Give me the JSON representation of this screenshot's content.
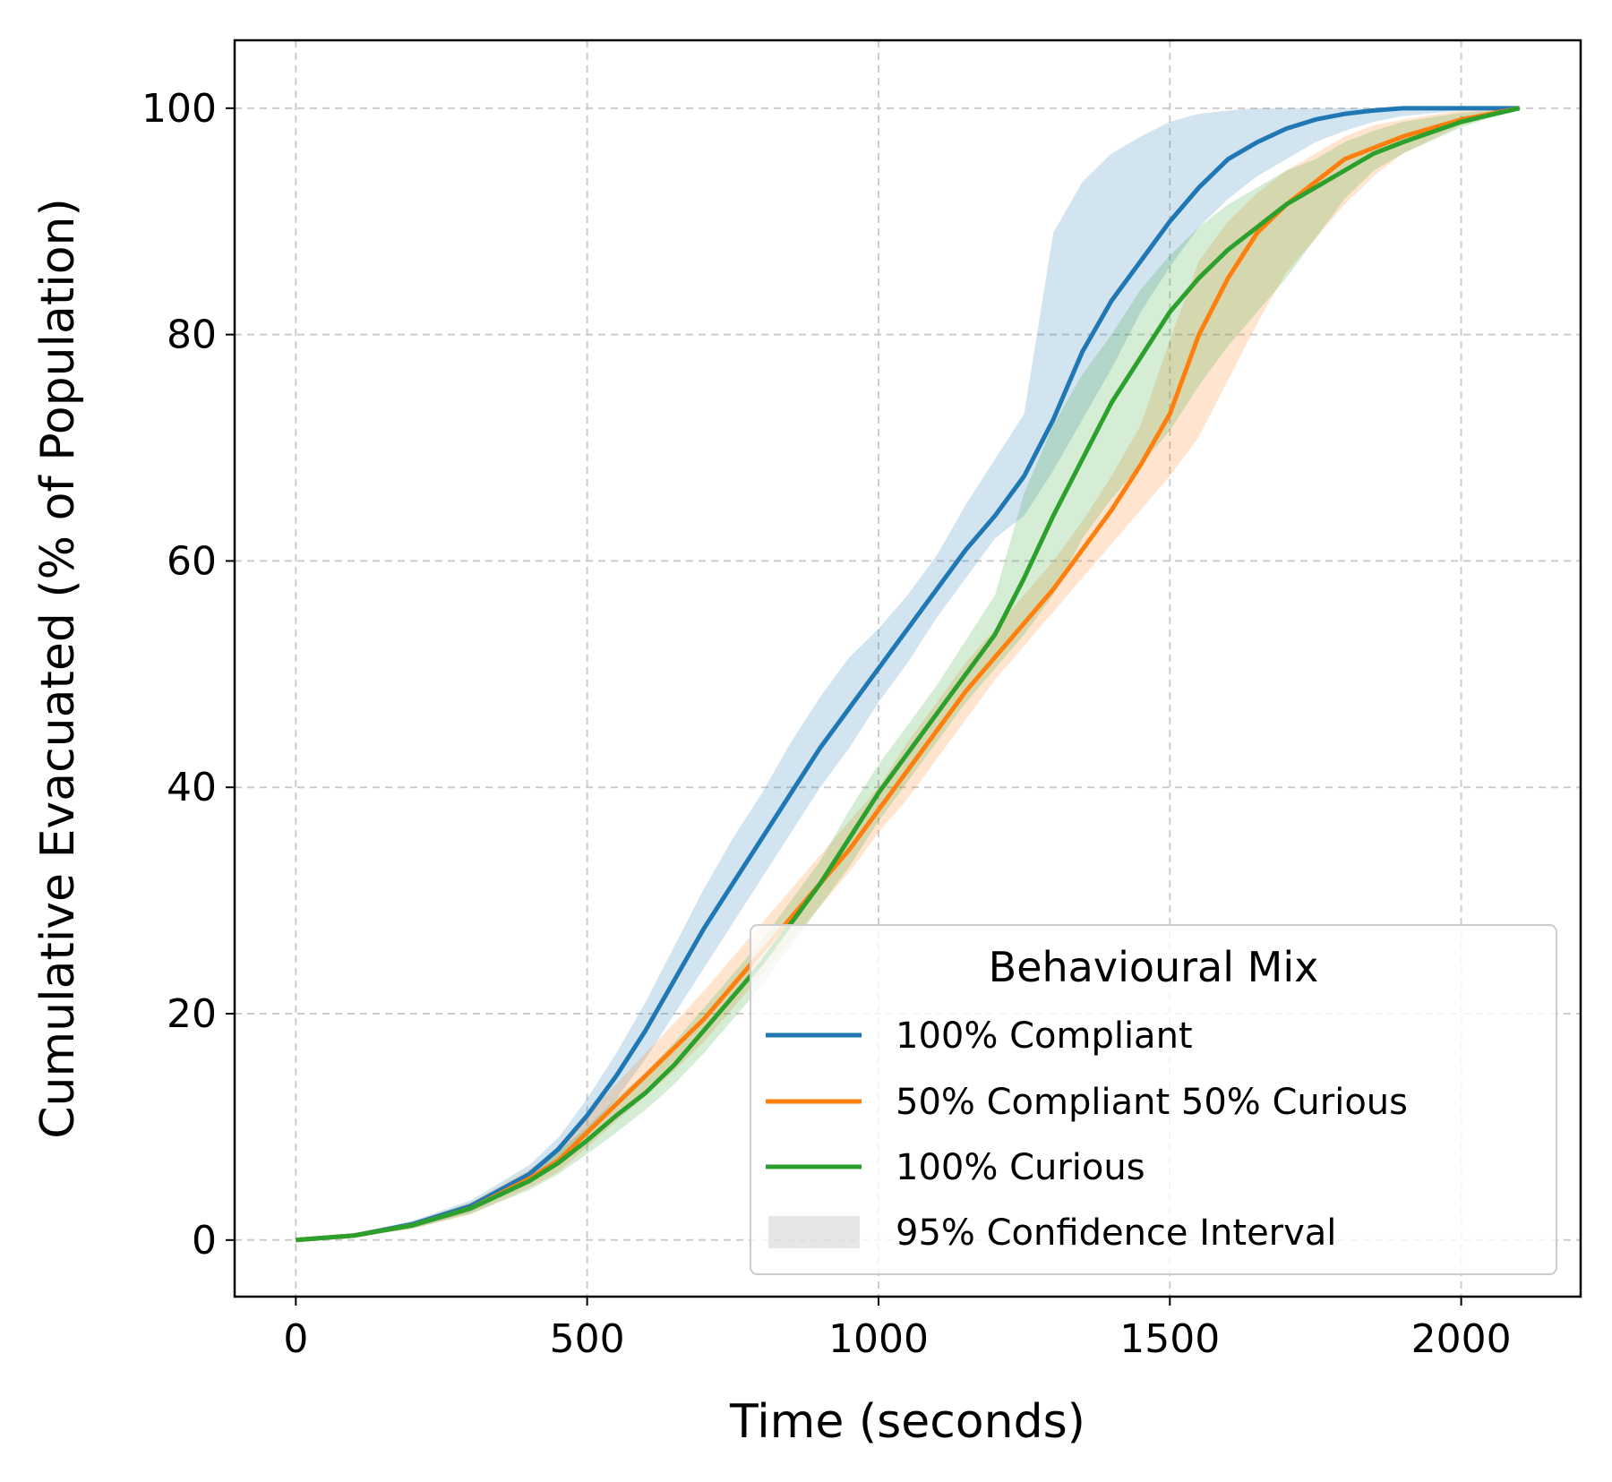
{
  "chart_data": {
    "type": "line",
    "xlabel": "Time (seconds)",
    "ylabel": "Cumulative Evacuated (% of Population)",
    "xlim": [
      -105,
      2205
    ],
    "ylim": [
      -5,
      106
    ],
    "xticks": [
      0,
      500,
      1000,
      1500,
      2000
    ],
    "yticks": [
      0,
      20,
      40,
      60,
      80,
      100
    ],
    "grid": true,
    "legend": {
      "title": "Behavioural Mix",
      "placement": "lower-right",
      "entries": [
        "100% Compliant",
        "50% Compliant 50% Curious",
        "100% Curious",
        "95% Confidence Interval"
      ]
    },
    "series": [
      {
        "name": "100% Compliant",
        "color": "#1f77b4",
        "x": [
          0,
          100,
          200,
          300,
          400,
          450,
          500,
          550,
          600,
          650,
          700,
          750,
          800,
          850,
          900,
          950,
          1000,
          1050,
          1100,
          1150,
          1200,
          1250,
          1300,
          1350,
          1400,
          1450,
          1500,
          1550,
          1600,
          1650,
          1700,
          1750,
          1800,
          1850,
          1900,
          2000,
          2100
        ],
        "y": [
          0,
          0.4,
          1.4,
          3.0,
          5.8,
          8.0,
          11.0,
          14.5,
          18.5,
          23.0,
          27.5,
          31.5,
          35.5,
          39.5,
          43.5,
          47.0,
          50.5,
          54.0,
          57.5,
          61.0,
          64.0,
          67.5,
          72.5,
          78.5,
          83.0,
          86.5,
          90.0,
          93.0,
          95.5,
          97.0,
          98.2,
          99.0,
          99.5,
          99.8,
          100,
          100,
          100
        ],
        "ci_lower": [
          0,
          0.3,
          1.1,
          2.5,
          5.0,
          7.0,
          9.5,
          12.5,
          16.0,
          20.0,
          24.0,
          28.0,
          32.0,
          36.0,
          40.0,
          43.5,
          47.5,
          51.0,
          55.0,
          58.5,
          62.0,
          64.0,
          68.0,
          72.5,
          77.0,
          82.0,
          86.0,
          89.5,
          92.0,
          94.0,
          95.5,
          97.0,
          98.0,
          98.8,
          99.3,
          99.8,
          100
        ],
        "ci_upper": [
          0,
          0.5,
          1.7,
          3.5,
          6.6,
          9.0,
          12.5,
          16.5,
          21.0,
          26.0,
          31.0,
          35.5,
          39.5,
          44.0,
          48.0,
          51.5,
          54.0,
          57.0,
          60.5,
          65.0,
          69.0,
          73.0,
          89.0,
          93.5,
          96.0,
          97.5,
          98.8,
          99.5,
          99.8,
          100,
          100,
          100,
          100,
          100,
          100,
          100,
          100
        ]
      },
      {
        "name": "50% Compliant 50% Curious",
        "color": "#ff7f0e",
        "x": [
          0,
          100,
          200,
          300,
          400,
          450,
          500,
          550,
          600,
          650,
          700,
          750,
          800,
          850,
          900,
          950,
          1000,
          1050,
          1100,
          1150,
          1200,
          1250,
          1300,
          1350,
          1400,
          1450,
          1500,
          1550,
          1600,
          1650,
          1700,
          1750,
          1800,
          1850,
          1900,
          2000,
          2100
        ],
        "y": [
          0,
          0.4,
          1.3,
          2.8,
          5.4,
          7.0,
          9.5,
          12.0,
          14.5,
          17.0,
          19.5,
          22.5,
          25.5,
          28.5,
          31.5,
          34.5,
          38.0,
          41.5,
          45.0,
          48.5,
          51.5,
          54.5,
          57.5,
          61.0,
          64.5,
          68.5,
          73.0,
          80.0,
          85.0,
          89.0,
          91.5,
          93.5,
          95.5,
          96.5,
          97.5,
          99.0,
          100
        ],
        "ci_lower": [
          0,
          0.3,
          1.0,
          2.3,
          4.6,
          6.0,
          8.2,
          10.5,
          12.7,
          15.0,
          17.5,
          20.5,
          23.5,
          26.5,
          29.5,
          32.5,
          36.0,
          39.0,
          42.5,
          46.0,
          49.5,
          52.5,
          55.5,
          58.5,
          61.5,
          64.5,
          67.5,
          71.0,
          76.0,
          81.0,
          85.5,
          88.5,
          91.5,
          94.0,
          96.0,
          98.5,
          100
        ],
        "ci_upper": [
          0,
          0.5,
          1.6,
          3.3,
          6.2,
          8.0,
          11.0,
          13.8,
          16.5,
          19.2,
          22.0,
          25.0,
          28.0,
          31.0,
          34.0,
          37.0,
          40.0,
          44.0,
          47.5,
          51.0,
          54.0,
          57.0,
          60.0,
          63.5,
          67.5,
          72.0,
          79.5,
          86.5,
          90.0,
          92.5,
          94.5,
          96.0,
          97.5,
          98.5,
          99.0,
          99.8,
          100
        ]
      },
      {
        "name": "100% Curious",
        "color": "#2ca02c",
        "x": [
          0,
          100,
          200,
          300,
          400,
          450,
          500,
          550,
          600,
          650,
          700,
          750,
          800,
          850,
          900,
          950,
          1000,
          1050,
          1100,
          1150,
          1200,
          1250,
          1300,
          1350,
          1400,
          1450,
          1500,
          1550,
          1600,
          1650,
          1700,
          1750,
          1800,
          1850,
          1900,
          2000,
          2100
        ],
        "y": [
          0,
          0.4,
          1.3,
          2.8,
          5.2,
          6.8,
          8.8,
          11.0,
          13.0,
          15.5,
          18.5,
          21.5,
          24.5,
          28.0,
          31.5,
          35.5,
          39.5,
          43.0,
          46.5,
          50.0,
          53.5,
          58.5,
          64.0,
          69.0,
          74.0,
          78.0,
          82.0,
          85.0,
          87.5,
          89.5,
          91.5,
          93.0,
          94.5,
          96.0,
          97.0,
          98.8,
          100
        ],
        "ci_lower": [
          0,
          0.3,
          1.0,
          2.3,
          4.4,
          5.8,
          7.6,
          9.5,
          11.5,
          13.8,
          16.5,
          19.5,
          22.5,
          26.0,
          29.5,
          33.0,
          37.0,
          40.5,
          44.0,
          47.5,
          50.5,
          53.5,
          57.0,
          62.0,
          65.5,
          68.5,
          71.5,
          75.5,
          79.0,
          82.0,
          85.0,
          88.5,
          92.0,
          94.5,
          96.0,
          98.3,
          100
        ],
        "ci_upper": [
          0,
          0.5,
          1.6,
          3.3,
          6.0,
          7.8,
          10.0,
          12.5,
          14.8,
          17.5,
          20.5,
          23.5,
          26.5,
          30.0,
          33.5,
          38.0,
          42.0,
          45.5,
          49.0,
          53.0,
          57.0,
          66.0,
          72.0,
          76.5,
          80.0,
          84.0,
          87.0,
          89.5,
          91.5,
          93.0,
          94.5,
          95.5,
          97.0,
          98.0,
          98.8,
          99.6,
          100
        ]
      }
    ]
  }
}
